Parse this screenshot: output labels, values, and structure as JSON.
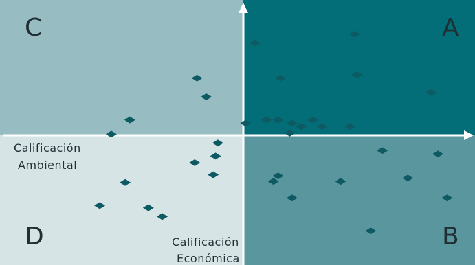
{
  "chart_data": {
    "type": "scatter",
    "title": "",
    "xlabel": "Calificación Económica",
    "xlabel_lines": [
      "Calificación",
      "Económica"
    ],
    "ylabel": "Calificación Ambiental",
    "ylabel_lines": [
      "Calificación",
      "Ambiental"
    ],
    "xlim": [
      -10,
      10
    ],
    "ylim": [
      -10,
      10
    ],
    "grid": false,
    "quadrants": [
      {
        "label": "A",
        "position": "top-right",
        "color": "#036e78"
      },
      {
        "label": "B",
        "position": "bottom-right",
        "color": "#5a969e"
      },
      {
        "label": "C",
        "position": "top-left",
        "color": "#97bdc2"
      },
      {
        "label": "D",
        "position": "bottom-left",
        "color": "#d7e4e6"
      }
    ],
    "marker_color": "#0d5a63",
    "axis_color": "#ffffff",
    "points": [
      {
        "x": 0.5,
        "y": 8.4
      },
      {
        "x": 4.8,
        "y": 9.2
      },
      {
        "x": 1.6,
        "y": 5.2
      },
      {
        "x": 4.9,
        "y": 5.5
      },
      {
        "x": 8.1,
        "y": 3.9
      },
      {
        "x": -2.0,
        "y": 5.2
      },
      {
        "x": -1.6,
        "y": 3.5
      },
      {
        "x": -4.9,
        "y": 1.4
      },
      {
        "x": -5.7,
        "y": 0.1
      },
      {
        "x": 0.1,
        "y": 1.1
      },
      {
        "x": 1.0,
        "y": 1.4
      },
      {
        "x": 1.5,
        "y": 1.4
      },
      {
        "x": 2.1,
        "y": 1.1
      },
      {
        "x": 2.5,
        "y": 0.8
      },
      {
        "x": 3.0,
        "y": 1.4
      },
      {
        "x": 3.4,
        "y": 0.8
      },
      {
        "x": 4.6,
        "y": 0.8
      },
      {
        "x": 2.0,
        "y": 0.2
      },
      {
        "x": -1.1,
        "y": -0.7
      },
      {
        "x": -1.2,
        "y": -1.9
      },
      {
        "x": -2.1,
        "y": -2.5
      },
      {
        "x": -1.3,
        "y": -3.6
      },
      {
        "x": -5.1,
        "y": -4.3
      },
      {
        "x": -6.2,
        "y": -6.4
      },
      {
        "x": -4.1,
        "y": -6.6
      },
      {
        "x": -3.5,
        "y": -7.4
      },
      {
        "x": 6.0,
        "y": -1.4
      },
      {
        "x": 8.4,
        "y": -1.7
      },
      {
        "x": 1.5,
        "y": -3.7
      },
      {
        "x": 1.3,
        "y": -4.2
      },
      {
        "x": 4.2,
        "y": -4.2
      },
      {
        "x": 7.1,
        "y": -3.9
      },
      {
        "x": 8.8,
        "y": -5.7
      },
      {
        "x": 2.1,
        "y": -5.7
      },
      {
        "x": 5.5,
        "y": -8.7
      }
    ]
  }
}
